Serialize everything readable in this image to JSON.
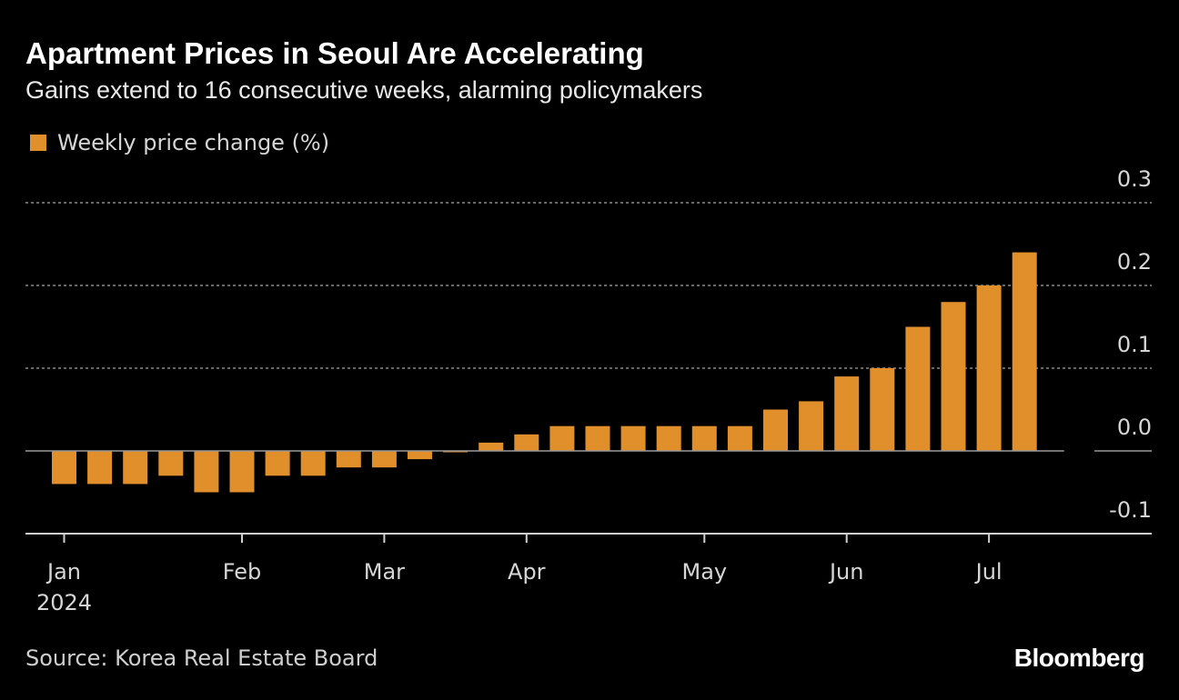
{
  "header": {
    "title": "Apartment Prices in Seoul Are Accelerating",
    "subtitle": "Gains extend to 16 consecutive weeks, alarming policymakers"
  },
  "legend": {
    "label": "Weekly price change (%)",
    "color": "#e08f2a"
  },
  "footer": {
    "source": "Source: Korea Real Estate Board",
    "brand": "Bloomberg"
  },
  "colors": {
    "background": "#000000",
    "bar": "#e08f2a",
    "grid": "#8a8a8a",
    "axis": "#d0d0d0",
    "text": "#d6d6d6"
  },
  "chart_data": {
    "type": "bar",
    "title": "Apartment Prices in Seoul Are Accelerating",
    "subtitle": "Gains extend to 16 consecutive weeks, alarming policymakers",
    "series": [
      {
        "name": "Weekly price change (%)",
        "values": [
          -0.04,
          -0.04,
          -0.04,
          -0.03,
          -0.05,
          -0.05,
          -0.03,
          -0.03,
          -0.02,
          -0.02,
          -0.01,
          0.0,
          0.01,
          0.02,
          0.03,
          0.03,
          0.03,
          0.03,
          0.03,
          0.03,
          0.05,
          0.06,
          0.09,
          0.1,
          0.15,
          0.18,
          0.2,
          0.24
        ]
      }
    ],
    "x_labels": [
      {
        "label": "Jan",
        "year": "2024",
        "bar_index": 0
      },
      {
        "label": "Feb",
        "bar_index": 5
      },
      {
        "label": "Mar",
        "bar_index": 9
      },
      {
        "label": "Apr",
        "bar_index": 13
      },
      {
        "label": "May",
        "bar_index": 18
      },
      {
        "label": "Jun",
        "bar_index": 22
      },
      {
        "label": "Jul",
        "bar_index": 26
      }
    ],
    "y_ticks": [
      "0.3",
      "0.2",
      "0.1",
      "0.0",
      "-0.1"
    ],
    "ylim": [
      -0.1,
      0.3
    ],
    "grid": true,
    "legend_position": "top-left",
    "xlabel": "",
    "ylabel": ""
  }
}
